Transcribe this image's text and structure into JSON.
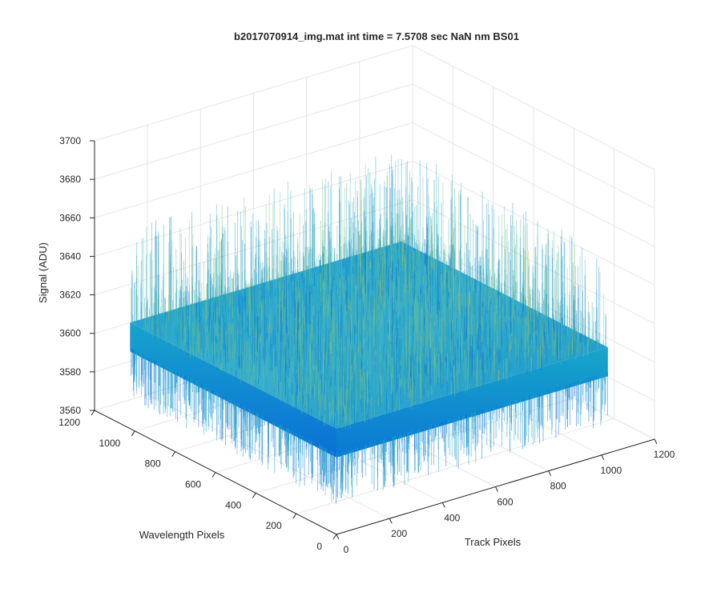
{
  "figure": {
    "title": "b2017070914_img.mat int time = 7.5708 sec  NaN nm BS01"
  },
  "chart_data": {
    "type": "surface",
    "title": "b2017070914_img.mat int time = 7.5708 sec  NaN nm BS01",
    "xlabel": "Track Pixels",
    "ylabel": "Wavelength Pixels",
    "zlabel": "Signal (ADU)",
    "xlim": [
      0,
      1200
    ],
    "ylim": [
      0,
      1200
    ],
    "zlim": [
      3560,
      3700
    ],
    "x_ticks": [
      0,
      200,
      400,
      600,
      800,
      1000,
      1200
    ],
    "y_ticks": [
      0,
      200,
      400,
      600,
      800,
      1000,
      1200
    ],
    "z_ticks": [
      3560,
      3580,
      3600,
      3620,
      3640,
      3660,
      3680,
      3700
    ],
    "x_tick_labels": [
      "0",
      "200",
      "400",
      "600",
      "800",
      "1000",
      "1200"
    ],
    "y_tick_labels": [
      "0",
      "200",
      "400",
      "600",
      "800",
      "1000",
      "1200"
    ],
    "z_tick_labels": [
      "3560",
      "3580",
      "3600",
      "3620",
      "3640",
      "3660",
      "3680",
      "3700"
    ],
    "surface": {
      "x_range": [
        0,
        1024
      ],
      "y_range": [
        0,
        1024
      ],
      "mean_signal": 3612,
      "noise_range": [
        3575,
        3665
      ]
    },
    "grid": true,
    "box": false,
    "colormap": "parula",
    "colors": {
      "surface_low": "#0a72d8",
      "surface_mid": "#14a8c8",
      "surface_high": "#a5c34a",
      "grid": "#e6e6e6",
      "axis": "#262626"
    }
  }
}
